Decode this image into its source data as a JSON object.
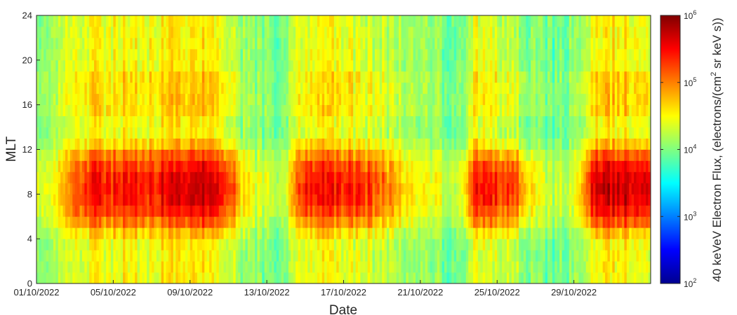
{
  "chart_data": {
    "type": "heatmap",
    "title": "",
    "xlabel": "Date",
    "ylabel": "MLT",
    "x_start": "01/10/2022",
    "x_end": "02/11/2022",
    "xticks": [
      "01/10/2022",
      "05/10/2022",
      "09/10/2022",
      "13/10/2022",
      "17/10/2022",
      "21/10/2022",
      "25/10/2022",
      "29/10/2022"
    ],
    "ylim": [
      0,
      24
    ],
    "yticks": [
      "0",
      "4",
      "8",
      "12",
      "16",
      "20",
      "24"
    ],
    "grid": false,
    "colormap": "jet",
    "colorbar": {
      "label_main": "40 keVeV Electron Flux, (electrons/(cm",
      "label_sup": "2",
      "label_tail": " sr keV s))",
      "scale": "log",
      "range": [
        100,
        1000000
      ],
      "ticks": [
        {
          "base": "10",
          "exp": "2"
        },
        {
          "base": "10",
          "exp": "3"
        },
        {
          "base": "10",
          "exp": "4"
        },
        {
          "base": "10",
          "exp": "5"
        },
        {
          "base": "10",
          "exp": "6"
        }
      ]
    },
    "log10_flux_profile": {
      "days": [
        0,
        1,
        2,
        3,
        4,
        5,
        6,
        7,
        8,
        9,
        10,
        11,
        12,
        13,
        14,
        15,
        16,
        17,
        18,
        19,
        20,
        21,
        22,
        23,
        24,
        25,
        26,
        27,
        28,
        29,
        30,
        31,
        32
      ],
      "dayside_peak": [
        4.35,
        4.4,
        5.15,
        5.5,
        5.45,
        5.5,
        5.45,
        5.6,
        5.75,
        5.75,
        5.3,
        4.5,
        4.3,
        4.3,
        5.5,
        5.45,
        5.4,
        5.35,
        5.1,
        4.7,
        4.5,
        4.4,
        4.3,
        5.5,
        5.35,
        5.2,
        4.4,
        4.25,
        4.3,
        5.6,
        5.75,
        5.7,
        5.65
      ],
      "nightside": [
        4.0,
        4.05,
        4.35,
        4.5,
        4.45,
        4.5,
        4.45,
        4.6,
        4.6,
        4.55,
        4.3,
        4.05,
        3.95,
        4.0,
        4.45,
        4.45,
        4.4,
        4.35,
        4.25,
        4.15,
        4.1,
        4.0,
        3.95,
        4.4,
        4.3,
        4.2,
        3.95,
        3.9,
        4.0,
        4.45,
        4.55,
        4.5,
        4.45
      ]
    }
  }
}
